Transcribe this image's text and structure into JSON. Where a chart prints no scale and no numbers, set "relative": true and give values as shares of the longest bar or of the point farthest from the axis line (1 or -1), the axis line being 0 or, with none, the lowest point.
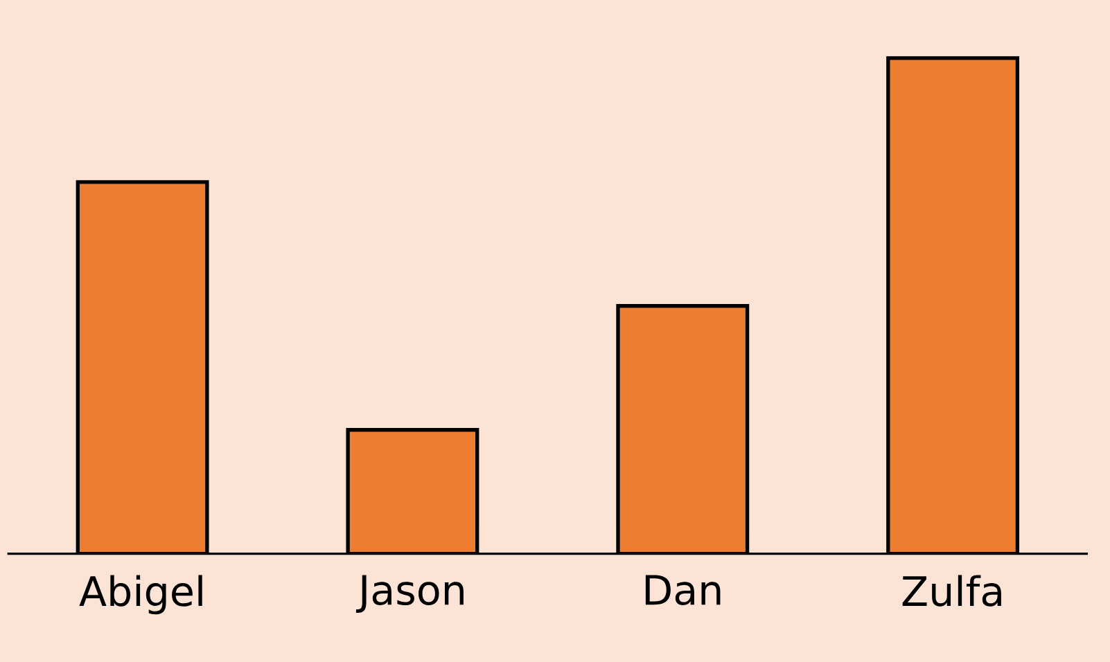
{
  "chart_data": {
    "type": "bar",
    "relative": true,
    "categories": [
      "Abigel",
      "Jason",
      "Dan",
      "Zulfa"
    ],
    "values": [
      0.75,
      0.25,
      0.5,
      1
    ],
    "color": "#ed7d31"
  }
}
